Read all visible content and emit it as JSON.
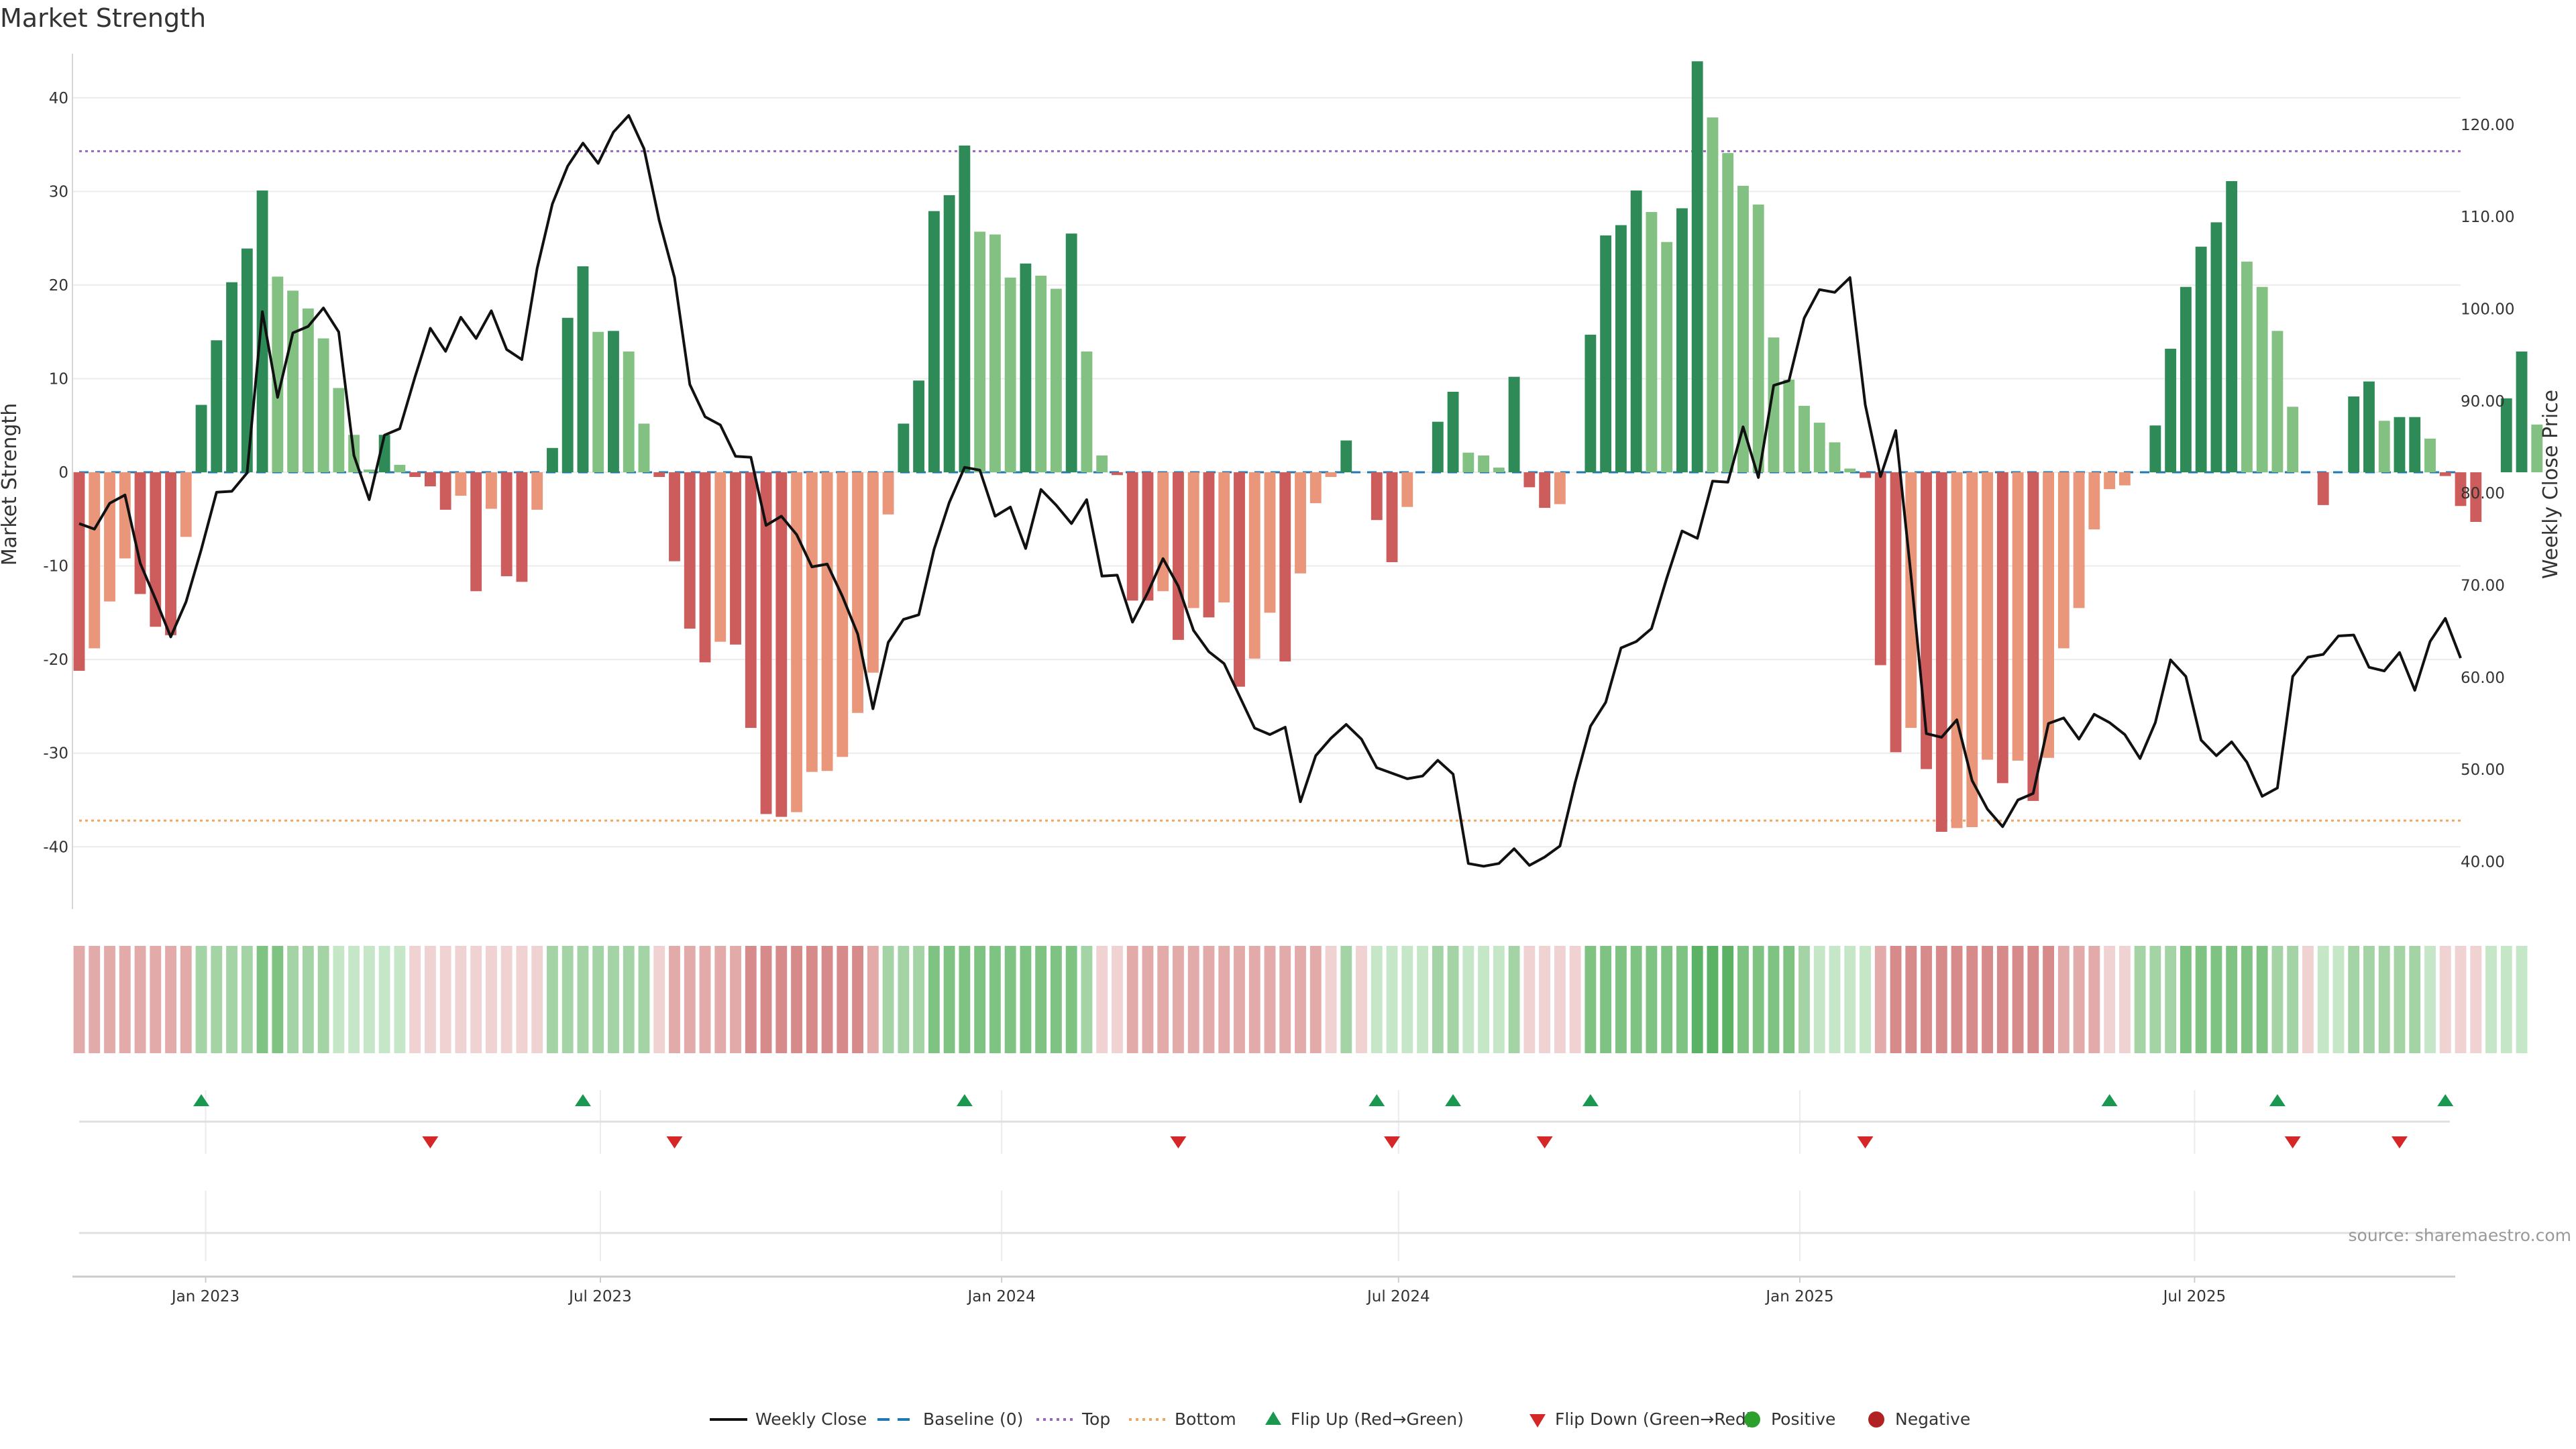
{
  "chart_data": {
    "type": "bar",
    "title": "Market Strength",
    "ylabel_left": "Market Strength",
    "ylabel_right": "Weekly Close Price",
    "source": "source: sharemaestro.com",
    "left_axis": {
      "range": [
        -47,
        45
      ],
      "ticks": [
        -40,
        -30,
        -20,
        -10,
        0,
        10,
        20,
        30,
        40
      ]
    },
    "right_axis": {
      "range": [
        34.5,
        128
      ],
      "ticks": [
        "40.00",
        "50.00",
        "60.00",
        "70.00",
        "80.00",
        "90.00",
        "100.00",
        "110.00",
        "120.00"
      ]
    },
    "x_axis": {
      "date_range": [
        "2022-11-04",
        "2025-10-31"
      ],
      "ticks": [
        {
          "date": "2023-01-01",
          "label": "Jan 2023"
        },
        {
          "date": "2023-07-01",
          "label": "Jul 2023"
        },
        {
          "date": "2024-01-01",
          "label": "Jan 2024"
        },
        {
          "date": "2024-07-01",
          "label": "Jul 2024"
        },
        {
          "date": "2025-01-01",
          "label": "Jan 2025"
        },
        {
          "date": "2025-07-01",
          "label": "Jul 2025"
        }
      ]
    },
    "reference_lines": {
      "top": 34.3,
      "bottom": -37.2,
      "baseline": 0
    },
    "colors": {
      "pos_strong": "#2e8b57",
      "pos_weak": "#82c182",
      "neg_strong": "#cd5c5c",
      "neg_weak": "#e9967a",
      "price": "#111111",
      "top": "#9467bd",
      "bottom": "#f0a561",
      "baseline": "#1f77b4",
      "flip_up": "#1a9850",
      "flip_down": "#d62728",
      "positive": "#2ca02c",
      "negative": "#b22222"
    },
    "series": [
      {
        "name": "Market Strength",
        "start_date": "2022-11-04",
        "interval_days": 7,
        "values": [
          -21.2,
          -18.8,
          -13.8,
          -9.2,
          -13,
          -16.5,
          -17.4,
          -6.9,
          7.2,
          14.1,
          20.3,
          23.9,
          30.1,
          20.9,
          19.4,
          17.5,
          14.3,
          9,
          4,
          0.3,
          4,
          0.8,
          -0.5,
          -1.5,
          -4,
          -2.5,
          -12.7,
          -3.9,
          -11.1,
          -11.7,
          -4,
          2.6,
          16.5,
          22,
          15,
          15.1,
          12.9,
          5.2,
          -0.5,
          -9.5,
          -16.7,
          -20.3,
          -18.1,
          -18.4,
          -27.3,
          -36.5,
          -36.8,
          -36.3,
          -32,
          -31.9,
          -30.4,
          -25.7,
          -21.4,
          -4.5,
          5.2,
          9.8,
          27.9,
          29.6,
          34.9,
          25.7,
          25.4,
          20.8,
          22.3,
          21,
          19.6,
          25.5,
          12.9,
          1.8,
          -0.3,
          -13.7,
          -13.7,
          -12.7,
          -17.9,
          -14.5,
          -15.5,
          -13.9,
          -22.9,
          -19.9,
          -15,
          -20.2,
          -10.8,
          -3.3,
          -0.5,
          3.4,
          0,
          -5.1,
          -9.6,
          -3.7,
          0,
          5.4,
          8.6,
          2.1,
          1.8,
          0.5,
          10.2,
          -1.6,
          -3.8,
          -3.4,
          0,
          14.7,
          25.3,
          26.4,
          30.1,
          27.8,
          24.6,
          28.2,
          43.9,
          37.9,
          34.1,
          30.6,
          28.6,
          14.4,
          9.9,
          7.1,
          5.3,
          3.2,
          0.4,
          -0.6,
          -20.6,
          -29.9,
          -27.3,
          -31.7,
          -38.4,
          -38,
          -37.9,
          -30.7,
          -33.2,
          -30.8,
          -35.1,
          -30.5,
          -18.8,
          -14.5,
          -6.1,
          -1.8,
          -1.4,
          0,
          5,
          13.2,
          19.8,
          24.1,
          26.7,
          31.1,
          22.5,
          19.8,
          15.1,
          7,
          0,
          -3.5,
          0,
          8.1,
          9.7,
          5.5,
          5.9,
          5.9,
          3.6,
          -0.4,
          -3.6,
          -5.3,
          0,
          7.9,
          12.9,
          5.1
        ]
      },
      {
        "name": "Weekly Close",
        "start_date": "2022-11-04",
        "interval_days": 7,
        "values": [
          76.7,
          76.1,
          78.9,
          79.8,
          72.4,
          68.5,
          64.4,
          68.2,
          73.9,
          80.1,
          80.2,
          82.2,
          99.7,
          90.4,
          97.4,
          98.1,
          100.1,
          97.5,
          84.1,
          79.3,
          86.3,
          87,
          92.6,
          97.9,
          95.4,
          99.1,
          96.8,
          99.8,
          95.6,
          94.5,
          104.4,
          111.4,
          115.5,
          118,
          115.8,
          119.2,
          121,
          117.4,
          109.6,
          103.4,
          91.8,
          88.3,
          87.4,
          84,
          83.9,
          76.5,
          77.5,
          75.5,
          72,
          72.3,
          68.8,
          64.7,
          56.6,
          63.8,
          66.3,
          66.8,
          73.9,
          79,
          82.8,
          82.5,
          77.5,
          78.5,
          74,
          80.4,
          78.7,
          76.7,
          79.3,
          71,
          71.1,
          66,
          69.2,
          72.9,
          69.9,
          65.1,
          62.8,
          61.5,
          58,
          54.5,
          53.8,
          54.6,
          46.5,
          51.5,
          53.4,
          54.9,
          53.3,
          50.2,
          49.6,
          49,
          49.3,
          51,
          49.5,
          39.8,
          39.5,
          39.8,
          41.4,
          39.6,
          40.5,
          41.7,
          48.6,
          54.7,
          57.3,
          63.2,
          63.9,
          65.3,
          70.8,
          75.9,
          75.1,
          81.3,
          81.2,
          87.2,
          81.7,
          91.7,
          92.2,
          99,
          102.1,
          101.8,
          103.4,
          89.6,
          81.8,
          86.8,
          71,
          53.9,
          53.5,
          55.4,
          48.8,
          45.7,
          43.8,
          46.7,
          47.4,
          55,
          55.6,
          53.3,
          56,
          55.1,
          53.8,
          51.2,
          55.1,
          61.9,
          60.1,
          53.2,
          51.5,
          53,
          50.8,
          47.1,
          48,
          60.1,
          62.2,
          62.5,
          64.5,
          64.6,
          61.1,
          60.7,
          62.7,
          58.6,
          63.9,
          66.4,
          62.1
        ]
      }
    ],
    "strength_strip_levels": [
      -2,
      -2,
      -2,
      -2,
      -2,
      -2,
      -2,
      -2,
      2,
      2,
      2,
      2,
      3,
      3,
      2,
      2,
      2,
      1,
      1,
      1,
      1,
      1,
      -1,
      -1,
      -1,
      -1,
      -1,
      -1,
      -1,
      -1,
      -1,
      2,
      2,
      2,
      2,
      2,
      2,
      2,
      -1,
      -2,
      -2,
      -2,
      -2,
      -2,
      -3,
      -3,
      -3,
      -3,
      -3,
      -3,
      -3,
      -3,
      -2,
      2,
      2,
      2,
      3,
      3,
      3,
      3,
      3,
      3,
      3,
      3,
      3,
      3,
      2,
      -1,
      -1,
      -2,
      -2,
      -2,
      -2,
      -2,
      -2,
      -2,
      -2,
      -2,
      -2,
      -2,
      -2,
      -2,
      -1,
      2,
      -1,
      1,
      1,
      1,
      1,
      2,
      2,
      1,
      1,
      1,
      2,
      -1,
      -1,
      -1,
      -1,
      3,
      3,
      3,
      3,
      3,
      3,
      3,
      4,
      4,
      4,
      3,
      3,
      3,
      3,
      2,
      1,
      1,
      1,
      1,
      -2,
      -3,
      -3,
      -3,
      -3,
      -3,
      -3,
      -3,
      -3,
      -3,
      -3,
      -3,
      -2,
      -2,
      -2,
      -1,
      -1,
      2,
      2,
      2,
      3,
      3,
      3,
      3,
      3,
      3,
      2,
      2,
      -1,
      1,
      1,
      2,
      2,
      2,
      2,
      2,
      1,
      -1,
      -1,
      -1,
      1,
      1,
      1
    ],
    "flip_up_dates": [
      "2022-12-30",
      "2023-06-23",
      "2023-12-15",
      "2024-06-21",
      "2024-07-26",
      "2024-09-27",
      "2025-05-23",
      "2025-08-08",
      "2025-10-24"
    ],
    "flip_down_dates": [
      "2023-04-14",
      "2023-08-04",
      "2024-03-22",
      "2024-06-28",
      "2024-09-06",
      "2025-01-31",
      "2025-08-15",
      "2025-10-03"
    ],
    "legend": [
      {
        "label": "Weekly Close",
        "kind": "line"
      },
      {
        "label": "Baseline (0)",
        "kind": "dash"
      },
      {
        "label": "Top",
        "kind": "dot-top"
      },
      {
        "label": "Bottom",
        "kind": "dot-bottom"
      },
      {
        "label": "Flip Up (Red→Green)",
        "kind": "tri-up"
      },
      {
        "label": "Flip Down (Green→Red)",
        "kind": "tri-down"
      },
      {
        "label": "Positive",
        "kind": "circle-pos"
      },
      {
        "label": "Negative",
        "kind": "circle-neg"
      }
    ]
  }
}
